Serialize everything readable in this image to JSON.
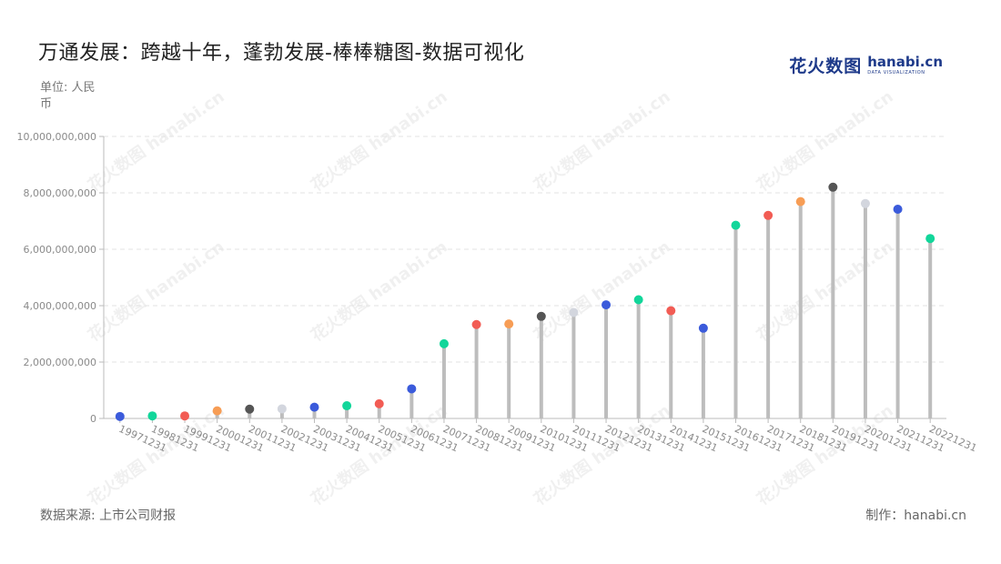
{
  "page": {
    "title": "万通发展：跨越十年，蓬勃发展-棒棒糖图-数据可视化",
    "unit_label": "单位: 人民币",
    "source_label": "数据来源: 上市公司财报",
    "credit_label": "制作：hanabi.cn"
  },
  "logo": {
    "text_cn": "花火数图",
    "text_en": "hanabi.cn",
    "text_sub": "DATA VISUALIZATION",
    "color": "#1e3a8a"
  },
  "watermark": {
    "text": "花火数图 hanabi.cn"
  },
  "chart_data": {
    "type": "lollipop",
    "title": "万通发展：跨越十年，蓬勃发展-棒棒糖图-数据可视化",
    "xlabel": "",
    "ylabel": "单位: 人民币",
    "ylim": [
      0,
      10000000000
    ],
    "yticks": [
      0,
      2000000000,
      4000000000,
      6000000000,
      8000000000,
      10000000000
    ],
    "ytick_labels": [
      "0",
      "2,000,000,000",
      "4,000,000,000",
      "6,000,000,000",
      "8,000,000,000",
      "10,000,000,000"
    ],
    "grid": true,
    "stem_color": "#bdbdbd",
    "categories": [
      "19971231",
      "19981231",
      "19991231",
      "20001231",
      "20011231",
      "20021231",
      "20031231",
      "20041231",
      "20051231",
      "20061231",
      "20071231",
      "20081231",
      "20091231",
      "20101231",
      "20111231",
      "20121231",
      "20131231",
      "20141231",
      "20151231",
      "20161231",
      "20171231",
      "20181231",
      "20191231",
      "20201231",
      "20211231",
      "20221231"
    ],
    "values": [
      70000000,
      90000000,
      90000000,
      270000000,
      330000000,
      340000000,
      400000000,
      450000000,
      520000000,
      1050000000,
      2650000000,
      3330000000,
      3350000000,
      3620000000,
      3760000000,
      4030000000,
      4210000000,
      3820000000,
      3200000000,
      6850000000,
      7200000000,
      7690000000,
      8200000000,
      7620000000,
      7420000000,
      6380000000
    ],
    "colors": [
      "#3b5bdb",
      "#12d69a",
      "#f25c54",
      "#f79d55",
      "#555555",
      "#d3d6de",
      "#3b5bdb",
      "#12d69a",
      "#f25c54",
      "#3b5bdb",
      "#12d69a",
      "#f25c54",
      "#f79d55",
      "#555555",
      "#d3d6de",
      "#3b5bdb",
      "#12d69a",
      "#f25c54",
      "#3b5bdb",
      "#12d69a",
      "#f25c54",
      "#f79d55",
      "#555555",
      "#d3d6de",
      "#3b5bdb",
      "#12d69a"
    ]
  }
}
